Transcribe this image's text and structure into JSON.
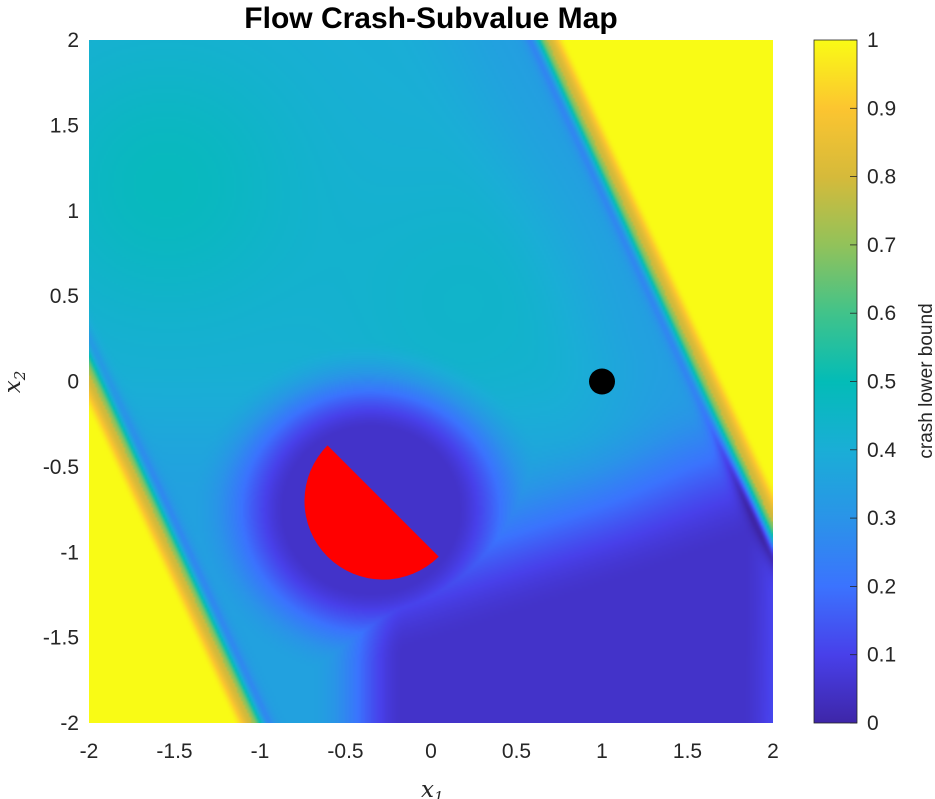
{
  "chart_data": {
    "type": "heatmap",
    "title": "Flow Crash-Subvalue Map",
    "xlabel": "x",
    "xlabel_sub": "1",
    "ylabel": "x",
    "ylabel_sub": "2",
    "xlim": [
      -2,
      2
    ],
    "ylim": [
      -2,
      2
    ],
    "xticks": [
      "-2",
      "-1.5",
      "-1",
      "-0.5",
      "0",
      "0.5",
      "1",
      "1.5",
      "2"
    ],
    "yticks": [
      "2",
      "1.5",
      "1",
      "0.5",
      "0",
      "-0.5",
      "-1",
      "-1.5",
      "-2"
    ],
    "colorbar": {
      "label": "crash lower bound",
      "range": [
        0,
        1
      ],
      "ticks": [
        "1",
        "0.9",
        "0.8",
        "0.7",
        "0.6",
        "0.5",
        "0.4",
        "0.3",
        "0.2",
        "0.1",
        "0"
      ],
      "colormap": "parula"
    },
    "annotations": [
      {
        "type": "half-disk",
        "center": [
          -0.28,
          -0.7
        ],
        "radius": 0.46,
        "color": "#ff0000"
      },
      {
        "type": "point",
        "x": 1.0,
        "y": 0.0,
        "color": "#000000"
      }
    ],
    "grid": false
  }
}
